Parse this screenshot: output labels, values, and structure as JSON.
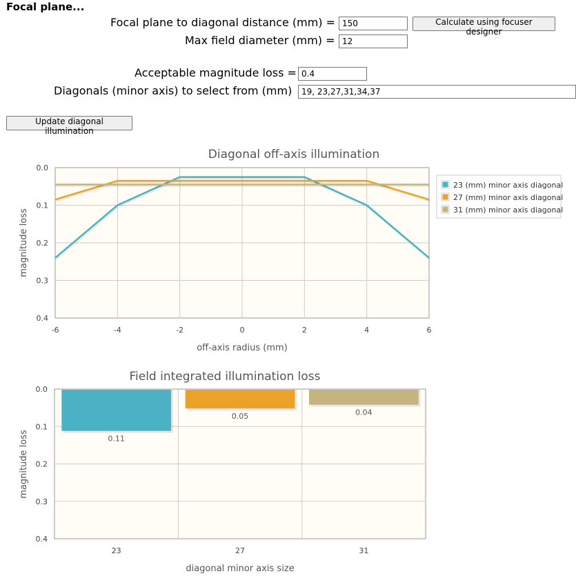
{
  "form": {
    "heading": "Focal plane...",
    "focal_distance_label": "Focal plane to diagonal distance (mm) =",
    "focal_distance_value": "150",
    "focuser_button": "Calculate using focuser designer",
    "max_field_label": "Max field diameter (mm) =",
    "max_field_value": "12",
    "mag_loss_label": "Acceptable magnitude loss =",
    "mag_loss_value": "0.4",
    "diagonals_label": "Diagonals (minor axis) to select from (mm)",
    "diagonals_value": "19, 23,27,31,34,37",
    "update_button": "Update diagonal illumination"
  },
  "chart_data": [
    {
      "type": "line",
      "title": "Diagonal off-axis illumination",
      "xlabel": "off-axis radius (mm)",
      "ylabel": "magnitude loss",
      "x": [
        -6,
        -4,
        -2,
        0,
        2,
        4,
        6
      ],
      "xlim": [
        -6,
        6
      ],
      "ylim": [
        0.0,
        0.4
      ],
      "y_inverted": true,
      "x_ticks": [
        "-6",
        "-4",
        "-2",
        "0",
        "2",
        "4",
        "6"
      ],
      "y_ticks": [
        "0.0",
        "0.1",
        "0.2",
        "0.3",
        "0.4"
      ],
      "legend_position": "right",
      "series": [
        {
          "name": "23 (mm) minor axis diagonal",
          "color": "#4bb2c5",
          "values": [
            0.24,
            0.1,
            0.025,
            0.025,
            0.025,
            0.1,
            0.24
          ]
        },
        {
          "name": "27 (mm) minor axis diagonal",
          "color": "#eaa228",
          "values": [
            0.085,
            0.035,
            0.035,
            0.035,
            0.035,
            0.035,
            0.085
          ]
        },
        {
          "name": "31 (mm) minor axis diagonal",
          "color": "#c5b47f",
          "values": [
            0.045,
            0.045,
            0.045,
            0.045,
            0.045,
            0.045,
            0.045
          ]
        }
      ]
    },
    {
      "type": "bar",
      "title": "Field integrated illumination loss",
      "xlabel": "diagonal minor axis size",
      "ylabel": "magnitude loss",
      "categories": [
        "23",
        "27",
        "31"
      ],
      "values": [
        0.11,
        0.05,
        0.04
      ],
      "value_labels": [
        "0.11",
        "0.05",
        "0.04"
      ],
      "colors": [
        "#4bb2c5",
        "#eaa228",
        "#c5b47f"
      ],
      "ylim": [
        0.0,
        0.4
      ],
      "y_inverted": true,
      "y_ticks": [
        "0.0",
        "0.1",
        "0.2",
        "0.3",
        "0.4"
      ]
    }
  ]
}
